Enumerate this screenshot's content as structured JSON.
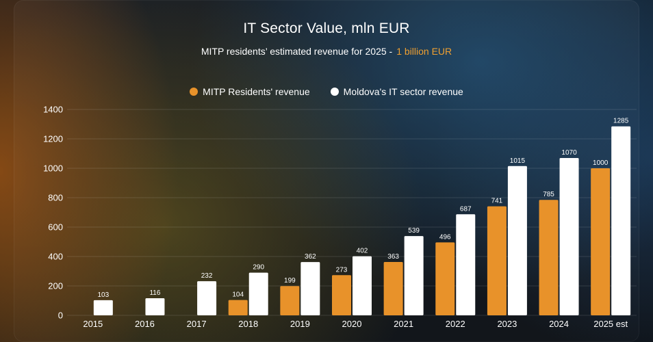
{
  "chart_data": {
    "type": "bar",
    "title": "IT Sector Value, mln EUR",
    "subtitle": "MITP residents’ estimated revenue for 2025 -",
    "subtitle_highlight": "1 billion EUR",
    "categories": [
      "2015",
      "2016",
      "2017",
      "2018",
      "2019",
      "2020",
      "2021",
      "2022",
      "2023",
      "2024",
      "2025 est"
    ],
    "series": [
      {
        "name": "MITP Residents' revenue",
        "color": "#e8922a",
        "values": [
          null,
          null,
          null,
          104,
          199,
          273,
          363,
          496,
          741,
          785,
          1000
        ]
      },
      {
        "name": "Moldova's IT sector revenue",
        "color": "#ffffff",
        "values": [
          103,
          116,
          232,
          290,
          362,
          402,
          539,
          687,
          1015,
          1070,
          1285
        ]
      }
    ],
    "yticks": [
      0,
      200,
      400,
      600,
      800,
      1000,
      1200,
      1400
    ],
    "ylim": [
      0,
      1400
    ],
    "grid": true,
    "legend_position": "top-center",
    "xlabel": "",
    "ylabel": ""
  },
  "colors": {
    "accent": "#e8922a",
    "highlight_text": "#f0a030"
  }
}
